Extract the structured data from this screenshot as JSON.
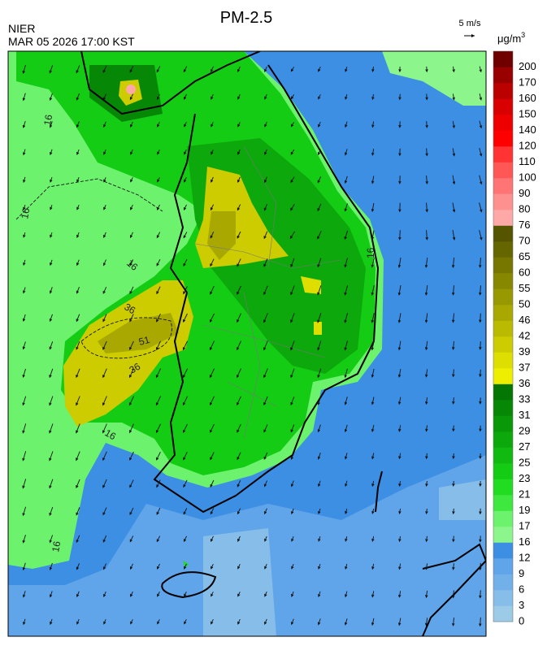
{
  "header": {
    "title": "PM-2.5",
    "agency": "NIER",
    "timestamp": "MAR 05 2026 17:00 KST",
    "reference_vector": "5 m/s",
    "unit": {
      "base": "μg/m",
      "sup": "3"
    }
  },
  "colorbar": {
    "levels": [
      0,
      3,
      6,
      9,
      12,
      16,
      17,
      19,
      21,
      23,
      25,
      27,
      29,
      31,
      33,
      36,
      37,
      39,
      42,
      46,
      50,
      55,
      60,
      65,
      70,
      76,
      80,
      90,
      100,
      110,
      120,
      140,
      150,
      160,
      170,
      200
    ],
    "colors": [
      "#9ccbe8",
      "#86bde9",
      "#72b0ea",
      "#60a4ea",
      "#3d8fe3",
      "#8cf58c",
      "#6cf26c",
      "#3fe83f",
      "#22dc22",
      "#14cc14",
      "#10ba10",
      "#0ca80c",
      "#089808",
      "#068806",
      "#047604",
      "#eeee00",
      "#dede00",
      "#cccc00",
      "#baba00",
      "#a8a800",
      "#989800",
      "#888800",
      "#777700",
      "#666600",
      "#555500",
      "#ffa8a8",
      "#ff9090",
      "#ff7474",
      "#ff5656",
      "#ff3333",
      "#ff0000",
      "#ee0000",
      "#d80000",
      "#bb0000",
      "#990000",
      "#700000"
    ]
  },
  "map": {
    "contour_labels": [
      16,
      16,
      16,
      16,
      16,
      16,
      36,
      36,
      51
    ]
  }
}
